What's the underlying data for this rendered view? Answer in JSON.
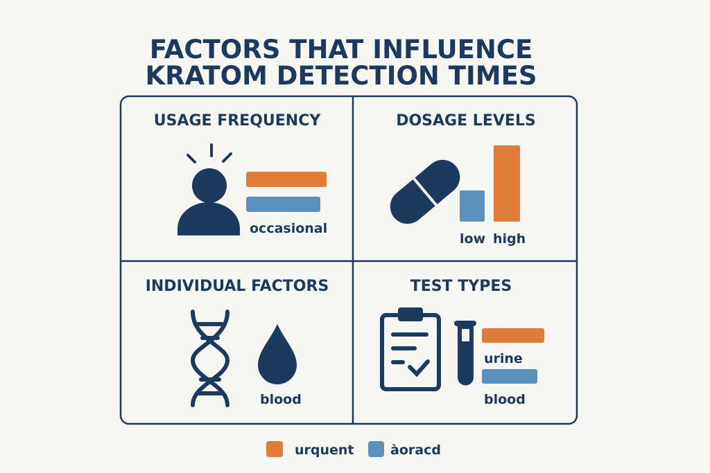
{
  "title": {
    "line1": "FACTORS THAT INFLUENCE",
    "line2": "KRATOM DETECTION TIMES"
  },
  "colors": {
    "navy": "#1c3a5e",
    "orange": "#e07b39",
    "blue": "#5b91bd",
    "background": "#f7f6f2"
  },
  "panels": {
    "usage": {
      "title": "USAGE FREQUENCY",
      "label": "occasional",
      "icon": "person-icon"
    },
    "dosage": {
      "title": "DOSAGE LEVELS",
      "label_low": "low",
      "label_high": "high",
      "icon": "pill-icon"
    },
    "individual": {
      "title": "INDIVIDUAL FACTORS",
      "label": "blood",
      "icons": [
        "dna-icon",
        "drop-icon"
      ]
    },
    "tests": {
      "title": "TEST TYPES",
      "label_urine": "urine",
      "label_blood": "blood",
      "icons": [
        "clipboard-icon",
        "test-tube-icon"
      ]
    }
  },
  "legend": [
    {
      "label": "urquent",
      "color": "#e07b39"
    },
    {
      "label": "àoracd",
      "color": "#5b91bd"
    }
  ]
}
